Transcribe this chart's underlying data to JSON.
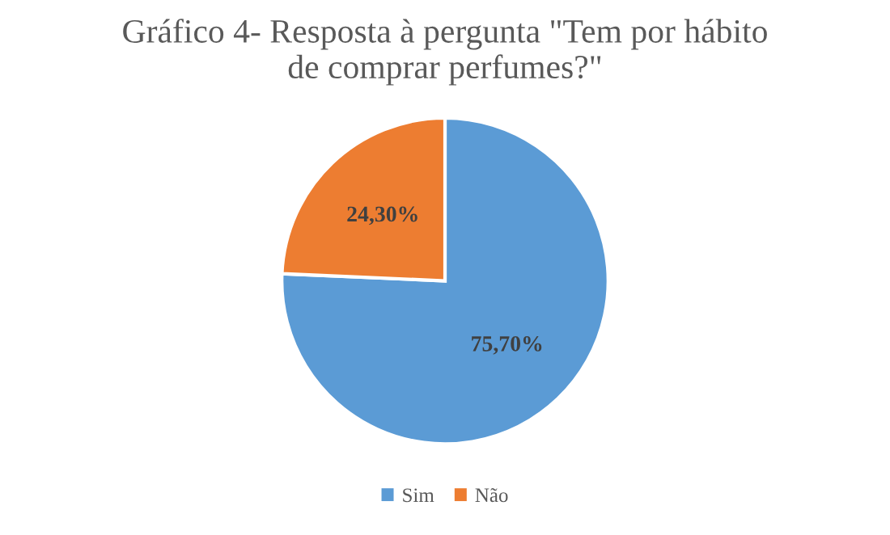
{
  "chart_data": {
    "type": "pie",
    "title": "Gráfico 4- Resposta à pergunta \"Tem por hábito\nde comprar perfumes?\"",
    "categories": [
      "Sim",
      "Não"
    ],
    "values": [
      75.7,
      24.3
    ],
    "value_labels": [
      "75,70%",
      "24,30%"
    ],
    "colors": [
      "#5b9bd5",
      "#ed7d31"
    ],
    "legend": "bottom"
  }
}
